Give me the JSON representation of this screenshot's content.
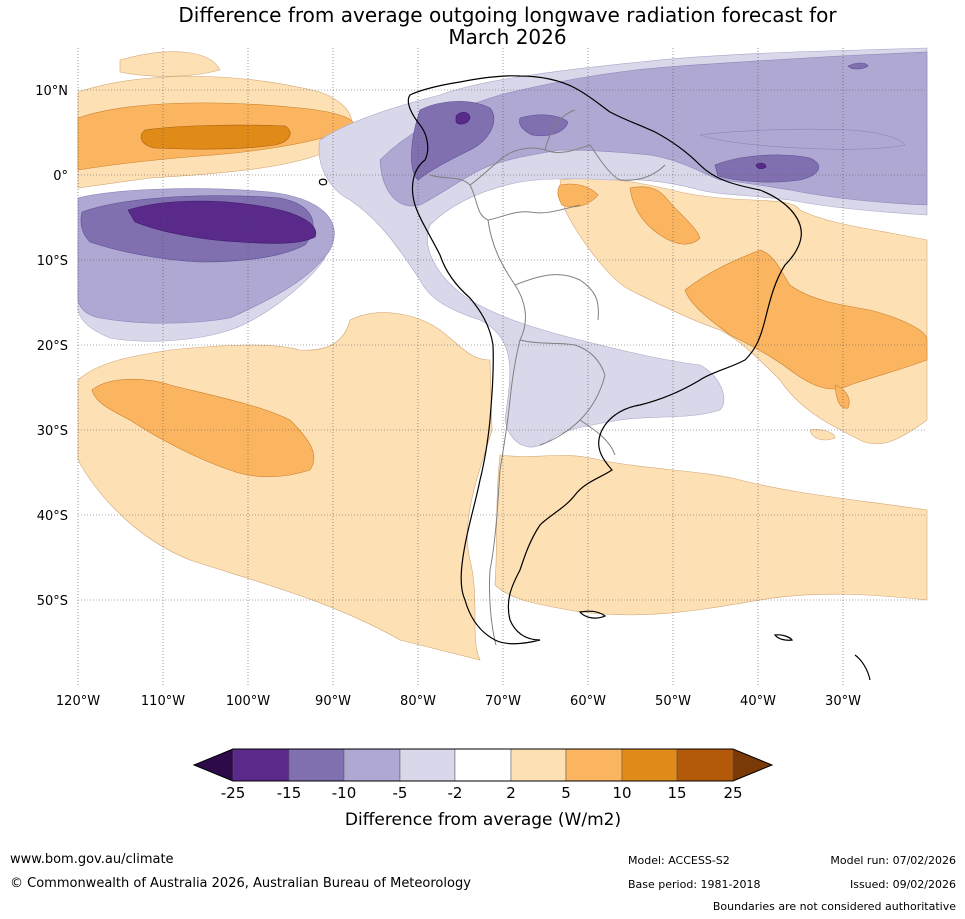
{
  "title": {
    "line1": "Difference from average outgoing longwave radiation forecast for",
    "line2": "March 2026"
  },
  "map": {
    "lat_labels": [
      "10°N",
      "0°",
      "10°S",
      "20°S",
      "30°S",
      "40°S",
      "50°S"
    ],
    "lon_labels": [
      "120°W",
      "110°W",
      "100°W",
      "90°W",
      "80°W",
      "70°W",
      "60°W",
      "50°W",
      "40°W",
      "30°W"
    ],
    "colors": {
      "deep_purple": "#5a2a8a",
      "purple": "#8070b0",
      "light_purple": "#aea8d2",
      "pale_purple": "#d8d8ea",
      "pale_orange": "#fde0b4",
      "light_orange": "#fbb560",
      "orange": "#e08a18",
      "dark_orange": "#b35a0a",
      "land_outline": "#000000",
      "border_outline": "#808080"
    }
  },
  "colorbar": {
    "tick_labels": [
      "-25",
      "-15",
      "-10",
      "-5",
      "-2",
      "2",
      "5",
      "10",
      "15",
      "25"
    ],
    "bin_colors": [
      "#5a2a8a",
      "#8070b0",
      "#aea8d2",
      "#d8d8ea",
      "#ffffff",
      "#fde0b4",
      "#fbb560",
      "#e08a18",
      "#b35a0a"
    ],
    "under_color": "#2f0a4a",
    "over_color": "#7a3a08",
    "title": "Difference from average (W/m2)"
  },
  "footer": {
    "website": "www.bom.gov.au/climate",
    "copyright": "© Commonwealth of Australia 2026, Australian Bureau of Meteorology",
    "model": "Model: ACCESS-S2",
    "base_period": "Base period: 1981-2018",
    "model_run": "Model run: 07/02/2026",
    "issued": "Issued: 09/02/2026",
    "disclaimer": "Boundaries are not considered authoritative"
  }
}
